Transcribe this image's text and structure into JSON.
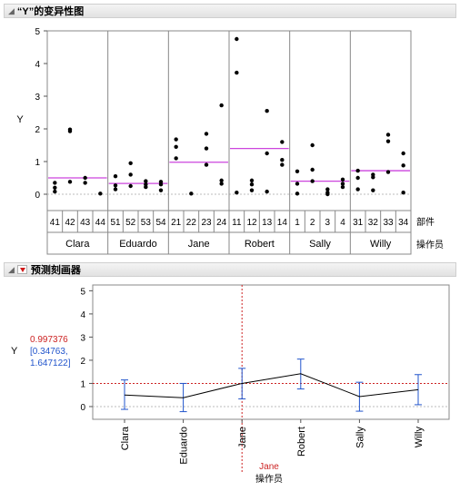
{
  "panel1": {
    "title": "“Y”的变异性图"
  },
  "panel2": {
    "title": "预测刻画器"
  },
  "var_chart": {
    "type": "scatter",
    "ylabel": "Y",
    "yticks": [
      "5",
      "4",
      "3",
      "2",
      "1",
      "0"
    ],
    "ylim": [
      -0.5,
      5
    ],
    "part_header": "部件",
    "operator_header": "操作员",
    "operators": [
      {
        "name": "Clara",
        "mean": 0.5,
        "parts": [
          "41",
          "42",
          "43",
          "44"
        ],
        "points": [
          [
            0,
            0.35
          ],
          [
            0,
            0.2
          ],
          [
            0,
            0.08
          ],
          [
            1,
            1.98
          ],
          [
            1,
            1.93
          ],
          [
            1,
            0.38
          ],
          [
            2,
            0.5
          ],
          [
            2,
            0.35
          ],
          [
            3,
            0.02
          ]
        ]
      },
      {
        "name": "Eduardo",
        "mean": 0.33,
        "parts": [
          "51",
          "52",
          "53",
          "54"
        ],
        "points": [
          [
            0,
            0.55
          ],
          [
            0,
            0.27
          ],
          [
            0,
            0.15
          ],
          [
            1,
            0.95
          ],
          [
            1,
            0.6
          ],
          [
            1,
            0.25
          ],
          [
            2,
            0.4
          ],
          [
            2,
            0.3
          ],
          [
            2,
            0.22
          ],
          [
            3,
            0.38
          ],
          [
            3,
            0.3
          ],
          [
            3,
            0.12
          ]
        ]
      },
      {
        "name": "Jane",
        "mean": 0.98,
        "parts": [
          "21",
          "22",
          "23",
          "24"
        ],
        "points": [
          [
            0,
            1.68
          ],
          [
            0,
            1.45
          ],
          [
            0,
            1.1
          ],
          [
            1,
            0.02
          ],
          [
            2,
            1.85
          ],
          [
            2,
            1.4
          ],
          [
            2,
            0.9
          ],
          [
            3,
            2.72
          ],
          [
            3,
            0.42
          ],
          [
            3,
            0.32
          ]
        ]
      },
      {
        "name": "Robert",
        "mean": 1.4,
        "parts": [
          "11",
          "12",
          "13",
          "14"
        ],
        "points": [
          [
            0,
            4.75
          ],
          [
            0,
            3.72
          ],
          [
            0,
            0.05
          ],
          [
            1,
            0.42
          ],
          [
            1,
            0.3
          ],
          [
            1,
            0.12
          ],
          [
            2,
            2.55
          ],
          [
            2,
            1.25
          ],
          [
            2,
            0.08
          ],
          [
            3,
            1.6
          ],
          [
            3,
            1.05
          ],
          [
            3,
            0.9
          ]
        ]
      },
      {
        "name": "Sally",
        "mean": 0.4,
        "parts": [
          "1",
          "2",
          "3",
          "4"
        ],
        "points": [
          [
            0,
            0.7
          ],
          [
            0,
            0.32
          ],
          [
            0,
            0.02
          ],
          [
            1,
            1.5
          ],
          [
            1,
            0.75
          ],
          [
            1,
            0.4
          ],
          [
            2,
            0.15
          ],
          [
            2,
            0.05
          ],
          [
            2,
            0.0
          ],
          [
            3,
            0.45
          ],
          [
            3,
            0.32
          ],
          [
            3,
            0.22
          ]
        ]
      },
      {
        "name": "Willy",
        "mean": 0.72,
        "parts": [
          "31",
          "32",
          "33",
          "34"
        ],
        "points": [
          [
            0,
            0.72
          ],
          [
            0,
            0.5
          ],
          [
            0,
            0.15
          ],
          [
            1,
            0.6
          ],
          [
            1,
            0.52
          ],
          [
            1,
            0.12
          ],
          [
            2,
            1.82
          ],
          [
            2,
            1.62
          ],
          [
            2,
            0.68
          ],
          [
            3,
            1.25
          ],
          [
            3,
            0.88
          ],
          [
            3,
            0.05
          ]
        ]
      }
    ],
    "colors": {
      "mean": "#cc44dd",
      "points": "#000000"
    }
  },
  "profiler": {
    "type": "line",
    "ylabel": "Y",
    "yticks": [
      "5",
      "4",
      "3",
      "2",
      "1",
      "0"
    ],
    "ylim": [
      -0.55,
      5.25
    ],
    "pred_value": "0.997376",
    "ci_line1": "[0.34763,",
    "ci_line2": "1.647122]",
    "categories": [
      "Clara",
      "Eduardo",
      "Jane",
      "Robert",
      "Sally",
      "Willy"
    ],
    "means": [
      0.5,
      0.38,
      1.0,
      1.42,
      0.43,
      0.73
    ],
    "lower": [
      -0.12,
      -0.22,
      0.33,
      0.76,
      -0.2,
      0.08
    ],
    "upper": [
      1.15,
      1.0,
      1.65,
      2.05,
      1.05,
      1.38
    ],
    "current_value": "Jane",
    "current_index": 2,
    "current_y": 0.997376,
    "xlabel": "操作员",
    "colors": {
      "crosshair": "#cc2222",
      "error": "#2255cc",
      "line": "#000000",
      "ci_text": "#2255cc",
      "value_text": "#cc2222"
    }
  }
}
